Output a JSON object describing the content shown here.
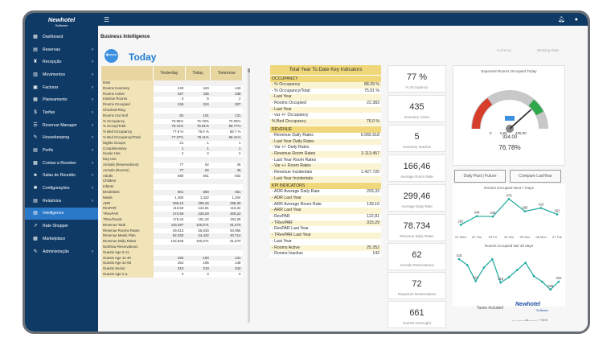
{
  "app": {
    "logo_name": "Newhotel",
    "logo_sub": "Software"
  },
  "sidebar": {
    "items": [
      {
        "label": "Dashboard",
        "icon": "dashboard-icon",
        "glyph": "▦",
        "chevron": false
      },
      {
        "label": "Reservas",
        "icon": "reservations-icon",
        "glyph": "▤",
        "chevron": true
      },
      {
        "label": "Recepção",
        "icon": "reception-icon",
        "glyph": "♜",
        "chevron": true
      },
      {
        "label": "Movimentos",
        "icon": "movements-icon",
        "glyph": "▥",
        "chevron": true
      },
      {
        "label": "Facturar",
        "icon": "invoice-icon",
        "glyph": "▣",
        "chevron": true
      },
      {
        "label": "Planeamento",
        "icon": "planning-icon",
        "glyph": "▦",
        "chevron": true
      },
      {
        "label": "Tarifas",
        "icon": "rates-icon",
        "glyph": "$",
        "chevron": true
      },
      {
        "label": "Revenue Manager",
        "icon": "revenue-icon",
        "glyph": "☰",
        "chevron": true
      },
      {
        "label": "Housekeeping",
        "icon": "housekeeping-icon",
        "glyph": "✎",
        "chevron": true
      },
      {
        "label": "Perfis",
        "icon": "profiles-icon",
        "glyph": "▤",
        "chevron": true
      },
      {
        "label": "Contas a Receber",
        "icon": "receivables-icon",
        "glyph": "▦",
        "chevron": true
      },
      {
        "label": "Salas de Reunião",
        "icon": "meeting-rooms-icon",
        "glyph": "♣",
        "chevron": true
      },
      {
        "label": "Configurações",
        "icon": "settings-icon",
        "glyph": "✱",
        "chevron": true
      },
      {
        "label": "Relatórios",
        "icon": "reports-icon",
        "glyph": "▤",
        "chevron": true
      },
      {
        "label": "Intelligence",
        "icon": "intelligence-icon",
        "glyph": "▤",
        "chevron": false,
        "active": true
      },
      {
        "label": "Rate Shopper",
        "icon": "rate-shopper-icon",
        "glyph": "↗",
        "chevron": false
      },
      {
        "label": "Marketplace",
        "icon": "marketplace-icon",
        "glyph": "▦",
        "chevron": false
      },
      {
        "label": "Administração",
        "icon": "admin-icon",
        "glyph": "✎",
        "chevron": true
      }
    ]
  },
  "header": {
    "page_title": "Business Intelligence",
    "today": "Today",
    "filter_left": "Currency",
    "filter_right": "Working Date"
  },
  "table": {
    "columns": [
      "Yesterday",
      "Today",
      "Tomorrow"
    ],
    "rows": [
      [
        "Date",
        "",
        "",
        ""
      ],
      [
        "Rooms Inventory",
        "440",
        "440",
        "440"
      ],
      [
        "Rooms Active",
        "427",
        "435",
        "438"
      ],
      [
        "Inactive Rooms",
        "3",
        "5",
        "2"
      ],
      [
        "Rooms Occupied",
        "345",
        "334",
        "307"
      ],
      [
        "Checked-Ring",
        "",
        "",
        ""
      ],
      [
        "Rooms Out Sell",
        "92",
        "101",
        "131"
      ],
      [
        "% Occupancy",
        "78.95%",
        "76.78%",
        "70.09%"
      ],
      [
        "% Occup/Total",
        "78.41%",
        "75.91%",
        "69.77%"
      ],
      [
        "% Bed Occupancy",
        "77.8 %",
        "76.0 %",
        "68.7 %"
      ],
      [
        "% Bed Occupancy/Total",
        "77.27%",
        "75.11%",
        "68.41%"
      ],
      [
        "Nights Groups",
        "21",
        "1",
        "1"
      ],
      [
        "Complimentary",
        "1",
        "1",
        "1"
      ],
      [
        "House Use",
        "2",
        "2",
        "2"
      ],
      [
        "Day Use",
        "",
        "",
        ""
      ],
      [
        "Arrivals (Reservations)",
        "77",
        "62",
        "45"
      ],
      [
        "Arrivals (Rooms)",
        "77",
        "62",
        "45"
      ],
      [
        "Adults",
        "680",
        "661",
        "602"
      ],
      [
        "Children",
        "",
        "",
        ""
      ],
      [
        "Infants",
        "",
        "",
        ""
      ],
      [
        "Breakfasts",
        "801",
        "680",
        "661"
      ],
      [
        "Meals",
        "1,360",
        "1,322",
        "1,204"
      ],
      [
        "ADR",
        "298,10",
        "299,46",
        "298,30"
      ],
      [
        "RevPAR",
        "113,50",
        "122,81",
        "116,34"
      ],
      [
        "TRevPAR",
        "272,59",
        "228,00",
        "209,22"
      ],
      [
        "TRev/Guest",
        "175,44",
        "151,32",
        "152,28"
      ],
      [
        "Revenue Total",
        "119,297",
        "100,071",
        "91,670"
      ],
      [
        "Revenue Rooms Rates",
        "49,513",
        "55,530",
        "50,956"
      ],
      [
        "Revenue Meals Plan",
        "52,333",
        "44,422",
        "40,714"
      ],
      [
        "Revenue Daily Rates",
        "102,846",
        "100,071",
        "91,670"
      ],
      [
        "NoShow Reservations",
        "",
        "",
        ""
      ],
      [
        "Guests Age 0-11",
        "",
        "",
        ""
      ],
      [
        "Guests Age 11-40",
        "226",
        "150",
        "131"
      ],
      [
        "Guests Age 41-60",
        "254",
        "195",
        "148"
      ],
      [
        "Guests Senior",
        "210",
        "210",
        "342"
      ],
      [
        "Guests Age n.a.",
        "0",
        "0",
        "0"
      ]
    ]
  },
  "kpi": {
    "title": "Total Year To Date Key Indicators",
    "sections": [
      {
        "name": "OCCUPANCY",
        "rows": [
          {
            "label": "- % Occupancy",
            "value": "88.29 %",
            "hl": true
          },
          {
            "label": "- % Occupancy/Total",
            "value": "75.91 %",
            "hl": false
          },
          {
            "label": "- Last Year",
            "value": "",
            "hl": true
          },
          {
            "label": "- Rooms Occupied",
            "value": "22.383",
            "hl": false
          },
          {
            "label": "- Last Year",
            "value": "",
            "hl": true
          },
          {
            "label": "- var +/- Occupancy",
            "value": "",
            "hl": false
          },
          {
            "label": "% Bed Occupancy",
            "value": "76.0 %",
            "hl": true
          }
        ]
      },
      {
        "name": "REVENUE",
        "rows": [
          {
            "label": "- Revenue Daily Rates",
            "value": "6.565.618",
            "hl": false
          },
          {
            "label": "- Last Year Daily Rates",
            "value": "",
            "hl": true
          },
          {
            "label": "- Var +/- Daily Rates",
            "value": "",
            "hl": false
          },
          {
            "label": "- Revenue Room Rates",
            "value": "3.113.457",
            "hl": true
          },
          {
            "label": "- Last Year Room Rates",
            "value": "",
            "hl": false
          },
          {
            "label": "- Var +/- Room Rates",
            "value": "",
            "hl": true
          },
          {
            "label": "- Revenue Incidentals",
            "value": "1.427.720",
            "hl": false
          },
          {
            "label": "- Last Year Incidentals",
            "value": "",
            "hl": true
          }
        ]
      },
      {
        "name": "KPI INDICATORS",
        "rows": [
          {
            "label": "- ADR Average Daily Rate",
            "value": "293,33",
            "hl": false
          },
          {
            "label": "- ADR Last Year",
            "value": "",
            "hl": true
          },
          {
            "label": "- ARR Average Room Rate",
            "value": "139,10",
            "hl": false
          },
          {
            "label": "- ARR Last Year",
            "value": "",
            "hl": true
          },
          {
            "label": "- RevPAR",
            "value": "122,81",
            "hl": false
          },
          {
            "label": "- TRevPAR",
            "value": "315,29",
            "hl": true
          },
          {
            "label": "- RevPAR Last Year",
            "value": "",
            "hl": false
          },
          {
            "label": "- TRevPAR Last Year",
            "value": "",
            "hl": true
          },
          {
            "label": "- Last Year",
            "value": "",
            "hl": false
          },
          {
            "label": "- Rooms Active",
            "value": "25.352",
            "hl": true
          },
          {
            "label": "- Rooms Inactive",
            "value": "143",
            "hl": false
          }
        ]
      }
    ]
  },
  "cards": [
    {
      "value": "77 %",
      "label": "% Occupancy"
    },
    {
      "value": "435",
      "label": "Inventory Active"
    },
    {
      "value": "5",
      "label": "Inventory Inactive"
    },
    {
      "value": "166,46",
      "label": "Average Room Rate"
    },
    {
      "value": "299,46",
      "label": "Average Daily Rate"
    },
    {
      "value": "78.734",
      "label": "Revenue Daily Rates"
    },
    {
      "value": "62",
      "label": "Arrivals Reservations"
    },
    {
      "value": "72",
      "label": "Departure Reservations"
    },
    {
      "value": "661",
      "label": "Guests Overnight"
    }
  ],
  "gauge": {
    "title": "Expected Rooms Occupied Today",
    "min": "0",
    "max": "435.00",
    "mid": "0.00",
    "value": "334.00",
    "pct": "76.78%",
    "fraction": 0.7678
  },
  "buttons": {
    "past_future": "Daily Past | Future",
    "compare": "Compare LastYear"
  },
  "chart_data": [
    {
      "type": "line",
      "title": "Rooms Occupied Next 7 Days",
      "categories": [
        "01 Wed",
        "02 Thu",
        "03 Fri",
        "04 Sat",
        "05 Sun",
        "06 Mon",
        "07 Tue"
      ],
      "values": [
        282,
        348,
        345,
        479,
        385,
        410,
        362
      ],
      "color": "#1aa89c"
    },
    {
      "type": "line",
      "title": "Rooms occupied last 30 days",
      "values": [
        415,
        390,
        324,
        380,
        415,
        318,
        340,
        370,
        400,
        345,
        322,
        289,
        322
      ],
      "labels": [
        "415",
        "",
        "324",
        "",
        "",
        "318",
        "",
        "",
        "",
        "",
        "",
        "289",
        "322"
      ],
      "color": "#1aa89c"
    }
  ],
  "footer": {
    "taxes": "Taxes included",
    "brand": "Newhotel",
    "brand_sub": "Software",
    "zoom": "91%"
  }
}
